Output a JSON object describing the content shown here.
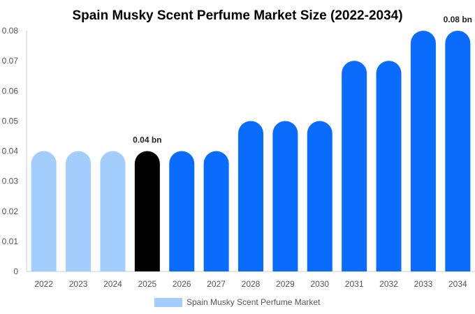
{
  "chart_data": {
    "type": "bar",
    "title": "Spain Musky Scent Perfume Market Size (2022-2034)",
    "categories": [
      "2022",
      "2023",
      "2024",
      "2025",
      "2026",
      "2027",
      "2028",
      "2029",
      "2030",
      "2031",
      "2032",
      "2033",
      "2034"
    ],
    "series": [
      {
        "name": "Spain Musky Scent Perfume Market",
        "values": [
          0.04,
          0.04,
          0.04,
          0.04,
          0.04,
          0.04,
          0.05,
          0.05,
          0.05,
          0.07,
          0.07,
          0.08,
          0.08
        ]
      }
    ],
    "ylim": [
      0,
      0.08
    ],
    "yticks": [
      "0",
      "0.01",
      "0.02",
      "0.03",
      "0.04",
      "0.05",
      "0.06",
      "0.07",
      "0.08"
    ],
    "data_labels": [
      {
        "category": "2025",
        "text": "0.04 bn"
      },
      {
        "category": "2034",
        "text": "0.08 bn"
      }
    ],
    "bar_colors": {
      "historical": "#a3cdfd",
      "current": "#000000",
      "forecast": "#0a6cff"
    },
    "color_groups": [
      "historical",
      "historical",
      "historical",
      "current",
      "forecast",
      "forecast",
      "forecast",
      "forecast",
      "forecast",
      "forecast",
      "forecast",
      "forecast",
      "forecast"
    ],
    "legend": {
      "position": "bottom",
      "swatch_color": "#a3cdfd"
    },
    "grid": false
  }
}
